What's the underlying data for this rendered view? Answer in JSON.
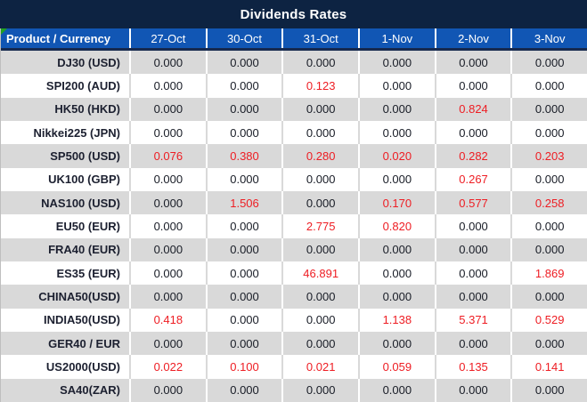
{
  "title": "Dividends Rates",
  "colors": {
    "title_bg": "#0d2342",
    "header_bg": "#1156b4",
    "header_divider": "#16294e",
    "alt_row_bg": "#d9d9d9",
    "text": "#181c26",
    "highlight_red": "#ee1d23",
    "corner_flag_green": "#21a121"
  },
  "table": {
    "product_header": "Product / Currency",
    "date_headers": [
      "27-Oct",
      "30-Oct",
      "31-Oct",
      "1-Nov",
      "2-Nov",
      "3-Nov"
    ],
    "rows": [
      {
        "product": "DJ30 (USD)",
        "values": [
          "0.000",
          "0.000",
          "0.000",
          "0.000",
          "0.000",
          "0.000"
        ],
        "red": [
          0,
          0,
          0,
          0,
          0,
          0
        ]
      },
      {
        "product": "SPI200 (AUD)",
        "values": [
          "0.000",
          "0.000",
          "0.123",
          "0.000",
          "0.000",
          "0.000"
        ],
        "red": [
          0,
          0,
          1,
          0,
          0,
          0
        ]
      },
      {
        "product": "HK50 (HKD)",
        "values": [
          "0.000",
          "0.000",
          "0.000",
          "0.000",
          "0.824",
          "0.000"
        ],
        "red": [
          0,
          0,
          0,
          0,
          1,
          0
        ]
      },
      {
        "product": "Nikkei225 (JPN)",
        "values": [
          "0.000",
          "0.000",
          "0.000",
          "0.000",
          "0.000",
          "0.000"
        ],
        "red": [
          0,
          0,
          0,
          0,
          0,
          0
        ]
      },
      {
        "product": "SP500 (USD)",
        "values": [
          "0.076",
          "0.380",
          "0.280",
          "0.020",
          "0.282",
          "0.203"
        ],
        "red": [
          1,
          1,
          1,
          1,
          1,
          1
        ]
      },
      {
        "product": "UK100 (GBP)",
        "values": [
          "0.000",
          "0.000",
          "0.000",
          "0.000",
          "0.267",
          "0.000"
        ],
        "red": [
          0,
          0,
          0,
          0,
          1,
          0
        ]
      },
      {
        "product": "NAS100 (USD)",
        "values": [
          "0.000",
          "1.506",
          "0.000",
          "0.170",
          "0.577",
          "0.258"
        ],
        "red": [
          0,
          1,
          0,
          1,
          1,
          1
        ]
      },
      {
        "product": "EU50 (EUR)",
        "values": [
          "0.000",
          "0.000",
          "2.775",
          "0.820",
          "0.000",
          "0.000"
        ],
        "red": [
          0,
          0,
          1,
          1,
          0,
          0
        ]
      },
      {
        "product": "FRA40 (EUR)",
        "values": [
          "0.000",
          "0.000",
          "0.000",
          "0.000",
          "0.000",
          "0.000"
        ],
        "red": [
          0,
          0,
          0,
          0,
          0,
          0
        ]
      },
      {
        "product": "ES35 (EUR)",
        "values": [
          "0.000",
          "0.000",
          "46.891",
          "0.000",
          "0.000",
          "1.869"
        ],
        "red": [
          0,
          0,
          1,
          0,
          0,
          1
        ]
      },
      {
        "product": "CHINA50(USD)",
        "values": [
          "0.000",
          "0.000",
          "0.000",
          "0.000",
          "0.000",
          "0.000"
        ],
        "red": [
          0,
          0,
          0,
          0,
          0,
          0
        ]
      },
      {
        "product": "INDIA50(USD)",
        "values": [
          "0.418",
          "0.000",
          "0.000",
          "1.138",
          "5.371",
          "0.529"
        ],
        "red": [
          1,
          0,
          0,
          1,
          1,
          1
        ]
      },
      {
        "product": "GER40 / EUR",
        "values": [
          "0.000",
          "0.000",
          "0.000",
          "0.000",
          "0.000",
          "0.000"
        ],
        "red": [
          0,
          0,
          0,
          0,
          0,
          0
        ]
      },
      {
        "product": "US2000(USD)",
        "values": [
          "0.022",
          "0.100",
          "0.021",
          "0.059",
          "0.135",
          "0.141"
        ],
        "red": [
          1,
          1,
          1,
          1,
          1,
          1
        ]
      },
      {
        "product": "SA40(ZAR)",
        "values": [
          "0.000",
          "0.000",
          "0.000",
          "0.000",
          "0.000",
          "0.000"
        ],
        "red": [
          0,
          0,
          0,
          0,
          0,
          0
        ]
      }
    ]
  }
}
